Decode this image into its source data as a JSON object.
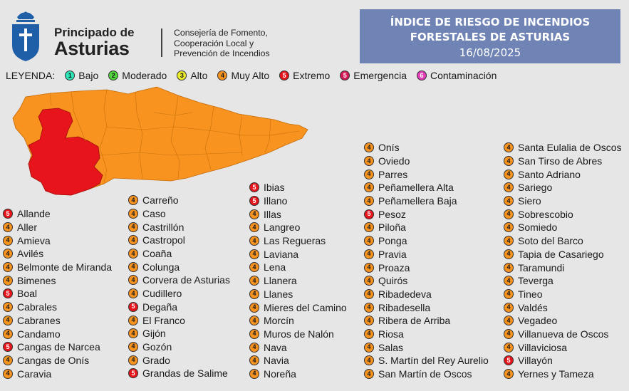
{
  "colors": {
    "Bajo": "#2ee6b8",
    "Moderado": "#4fd63a",
    "Alto": "#ecec2a",
    "Muy Alto": "#f7931e",
    "Extremo": "#e8141c",
    "Emergencia": "#d21a55",
    "Contaminación": "#e23fb8",
    "title_bg": "#6f83b5",
    "shield": "#1f5fa8"
  },
  "header": {
    "brand_line1": "Principado de",
    "brand_line2": "Asturias",
    "consejeria": [
      "Consejería de Fomento,",
      "Cooperación Local y",
      "Prevención de Incendios"
    ]
  },
  "title": {
    "line1": "ÍNDICE DE RIESGO DE INCENDIOS",
    "line2": "FORESTALES DE ASTURIAS",
    "date": "16/08/2025"
  },
  "legend": {
    "label": "LEYENDA:",
    "items": [
      {
        "n": "1",
        "label": "Bajo",
        "level": "Bajo"
      },
      {
        "n": "2",
        "label": "Moderado",
        "level": "Moderado"
      },
      {
        "n": "3",
        "label": "Alto",
        "level": "Alto"
      },
      {
        "n": "4",
        "label": "Muy Alto",
        "level": "Muy Alto"
      },
      {
        "n": "5",
        "label": "Extremo",
        "level": "Extremo"
      },
      {
        "n": "5",
        "label": "Emergencia",
        "level": "Emergencia"
      },
      {
        "n": "6",
        "label": "Contaminación",
        "level": "Contaminación"
      }
    ]
  },
  "columns": [
    [
      [
        "Allande",
        5
      ],
      [
        "Aller",
        4
      ],
      [
        "Amieva",
        4
      ],
      [
        "Avilés",
        4
      ],
      [
        "Belmonte de Miranda",
        4
      ],
      [
        "Bimenes",
        4
      ],
      [
        "Boal",
        5
      ],
      [
        "Cabrales",
        4
      ],
      [
        "Cabranes",
        4
      ],
      [
        "Candamo",
        4
      ],
      [
        "Cangas de Narcea",
        5
      ],
      [
        "Cangas de Onís",
        4
      ],
      [
        "Caravia",
        4
      ]
    ],
    [
      [
        "Carreño",
        4
      ],
      [
        "Caso",
        4
      ],
      [
        "Castrillón",
        4
      ],
      [
        "Castropol",
        4
      ],
      [
        "Coaña",
        4
      ],
      [
        "Colunga",
        4
      ],
      [
        "Corvera de Asturias",
        4
      ],
      [
        "Cudillero",
        4
      ],
      [
        "Degaña",
        5
      ],
      [
        "El Franco",
        4
      ],
      [
        "Gijón",
        4
      ],
      [
        "Gozón",
        4
      ],
      [
        "Grado",
        4
      ],
      [
        "Grandas de Salime",
        5
      ]
    ],
    [
      [
        "Ibias",
        5
      ],
      [
        "Illano",
        5
      ],
      [
        "Illas",
        4
      ],
      [
        "Langreo",
        4
      ],
      [
        "Las Regueras",
        4
      ],
      [
        "Laviana",
        4
      ],
      [
        "Lena",
        4
      ],
      [
        "Llanera",
        4
      ],
      [
        "Llanes",
        4
      ],
      [
        "Mieres del Camino",
        4
      ],
      [
        "Morcín",
        4
      ],
      [
        "Muros de Nalón",
        4
      ],
      [
        "Nava",
        4
      ],
      [
        "Navia",
        4
      ],
      [
        "Noreña",
        4
      ]
    ],
    [
      [
        "Onís",
        4
      ],
      [
        "Oviedo",
        4
      ],
      [
        "Parres",
        4
      ],
      [
        "Peñamellera Alta",
        4
      ],
      [
        "Peñamellera Baja",
        4
      ],
      [
        "Pesoz",
        5
      ],
      [
        "Piloña",
        4
      ],
      [
        "Ponga",
        4
      ],
      [
        "Pravia",
        4
      ],
      [
        "Proaza",
        4
      ],
      [
        "Quirós",
        4
      ],
      [
        "Ribadedeva",
        4
      ],
      [
        "Ribadesella",
        4
      ],
      [
        "Ribera de Arriba",
        4
      ],
      [
        "Riosa",
        4
      ],
      [
        "Salas",
        4
      ],
      [
        "S. Martín del Rey Aurelio",
        4
      ],
      [
        "San Martín de Oscos",
        4
      ]
    ],
    [
      [
        "Santa Eulalia de Oscos",
        4
      ],
      [
        "San Tirso de Abres",
        4
      ],
      [
        "Santo Adriano",
        4
      ],
      [
        "Sariego",
        4
      ],
      [
        "Siero",
        4
      ],
      [
        "Sobrescobio",
        4
      ],
      [
        "Somiedo",
        4
      ],
      [
        "Soto del Barco",
        4
      ],
      [
        "Tapia de Casariego",
        4
      ],
      [
        "Taramundi",
        4
      ],
      [
        "Teverga",
        4
      ],
      [
        "Tineo",
        4
      ],
      [
        "Valdés",
        4
      ],
      [
        "Vegadeo",
        4
      ],
      [
        "Villanueva de Oscos",
        4
      ],
      [
        "Villaviciosa",
        4
      ],
      [
        "Villayón",
        5
      ],
      [
        "Yernes y Tameza",
        4
      ]
    ]
  ]
}
